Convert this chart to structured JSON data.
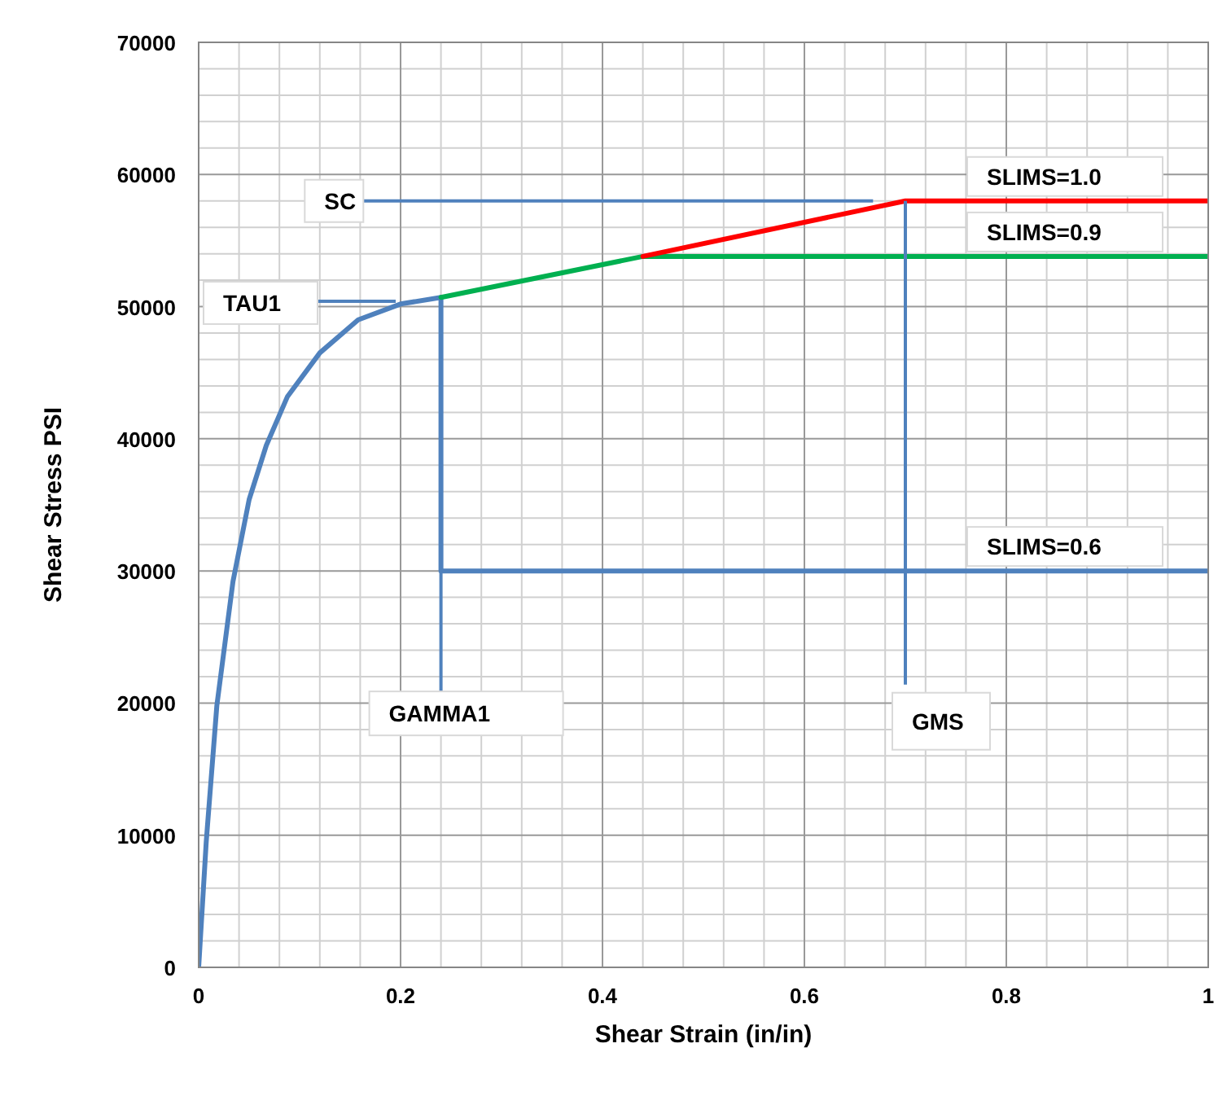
{
  "chart_data": {
    "type": "line",
    "xlabel": "Shear Strain (in/in)",
    "ylabel": "Shear Stress PSI",
    "xlim": [
      0,
      1
    ],
    "ylim": [
      0,
      70000
    ],
    "xticks": [
      0,
      {
        "value": 0.04,
        "label": null
      },
      {
        "value": 0.08,
        "label": null
      },
      {
        "value": 0.12,
        "label": null
      },
      {
        "value": 0.16,
        "label": null
      },
      0.2,
      {
        "value": 0.24,
        "label": null
      },
      {
        "value": 0.28,
        "label": null
      },
      {
        "value": 0.32,
        "label": null
      },
      {
        "value": 0.36,
        "label": null
      },
      0.4,
      {
        "value": 0.44,
        "label": null
      },
      {
        "value": 0.48,
        "label": null
      },
      {
        "value": 0.52,
        "label": null
      },
      {
        "value": 0.56,
        "label": null
      },
      0.6,
      {
        "value": 0.64,
        "label": null
      },
      {
        "value": 0.68,
        "label": null
      },
      {
        "value": 0.72,
        "label": null
      },
      {
        "value": 0.76,
        "label": null
      },
      0.8,
      {
        "value": 0.84,
        "label": null
      },
      {
        "value": 0.88,
        "label": null
      },
      {
        "value": 0.92,
        "label": null
      },
      {
        "value": 0.96,
        "label": null
      },
      1
    ],
    "yticks": [
      0,
      {
        "value": 2000,
        "label": null
      },
      {
        "value": 4000,
        "label": null
      },
      {
        "value": 6000,
        "label": null
      },
      {
        "value": 8000,
        "label": null
      },
      10000,
      {
        "value": 12000,
        "label": null
      },
      {
        "value": 14000,
        "label": null
      },
      {
        "value": 16000,
        "label": null
      },
      {
        "value": 18000,
        "label": null
      },
      20000,
      {
        "value": 22000,
        "label": null
      },
      {
        "value": 24000,
        "label": null
      },
      {
        "value": 26000,
        "label": null
      },
      {
        "value": 28000,
        "label": null
      },
      30000,
      {
        "value": 32000,
        "label": null
      },
      {
        "value": 34000,
        "label": null
      },
      {
        "value": 36000,
        "label": null
      },
      {
        "value": 38000,
        "label": null
      },
      40000,
      {
        "value": 42000,
        "label": null
      },
      {
        "value": 44000,
        "label": null
      },
      {
        "value": 46000,
        "label": null
      },
      {
        "value": 48000,
        "label": null
      },
      50000,
      {
        "value": 52000,
        "label": null
      },
      {
        "value": 54000,
        "label": null
      },
      {
        "value": 56000,
        "label": null
      },
      {
        "value": 58000,
        "label": null
      },
      60000,
      {
        "value": 62000,
        "label": null
      },
      {
        "value": 64000,
        "label": null
      },
      {
        "value": 66000,
        "label": null
      },
      {
        "value": 68000,
        "label": null
      },
      70000
    ],
    "grid": true,
    "legend": false,
    "marker": "none",
    "line_style": "solid",
    "series": [
      {
        "color": "#4f81bd",
        "x": [
          0,
          0.0075,
          0.018,
          0.034,
          0.05,
          0.067,
          0.088,
          0.12,
          0.158,
          0.2,
          0.24
        ],
        "values": [
          0,
          9500,
          19800,
          29200,
          35400,
          39500,
          43200,
          46500,
          49000,
          50200,
          50700
        ]
      },
      {
        "name": "SLIMS=0.6",
        "color": "#4f81bd",
        "x": [
          0.24,
          0.24,
          1
        ],
        "values": [
          50700,
          30000,
          30000
        ]
      },
      {
        "name": "SLIMS=0.9",
        "color": "#00b050",
        "x": [
          0.24,
          0.44,
          1
        ],
        "values": [
          50700,
          53800,
          53800
        ]
      },
      {
        "name": "SLIMS=1.0",
        "color": "#ff0000",
        "x": [
          0.44,
          0.7,
          1
        ],
        "values": [
          53800,
          58000,
          58000
        ]
      }
    ],
    "annotations": [
      "TAU1",
      {
        "text": "SC",
        "x": 0.668,
        "y": 58000
      },
      {
        "text": "GAMMA1",
        "x": 0.24,
        "y": 30000
      },
      {
        "text": "GMS",
        "x": 0.7,
        "y": 58000
      }
    ]
  }
}
